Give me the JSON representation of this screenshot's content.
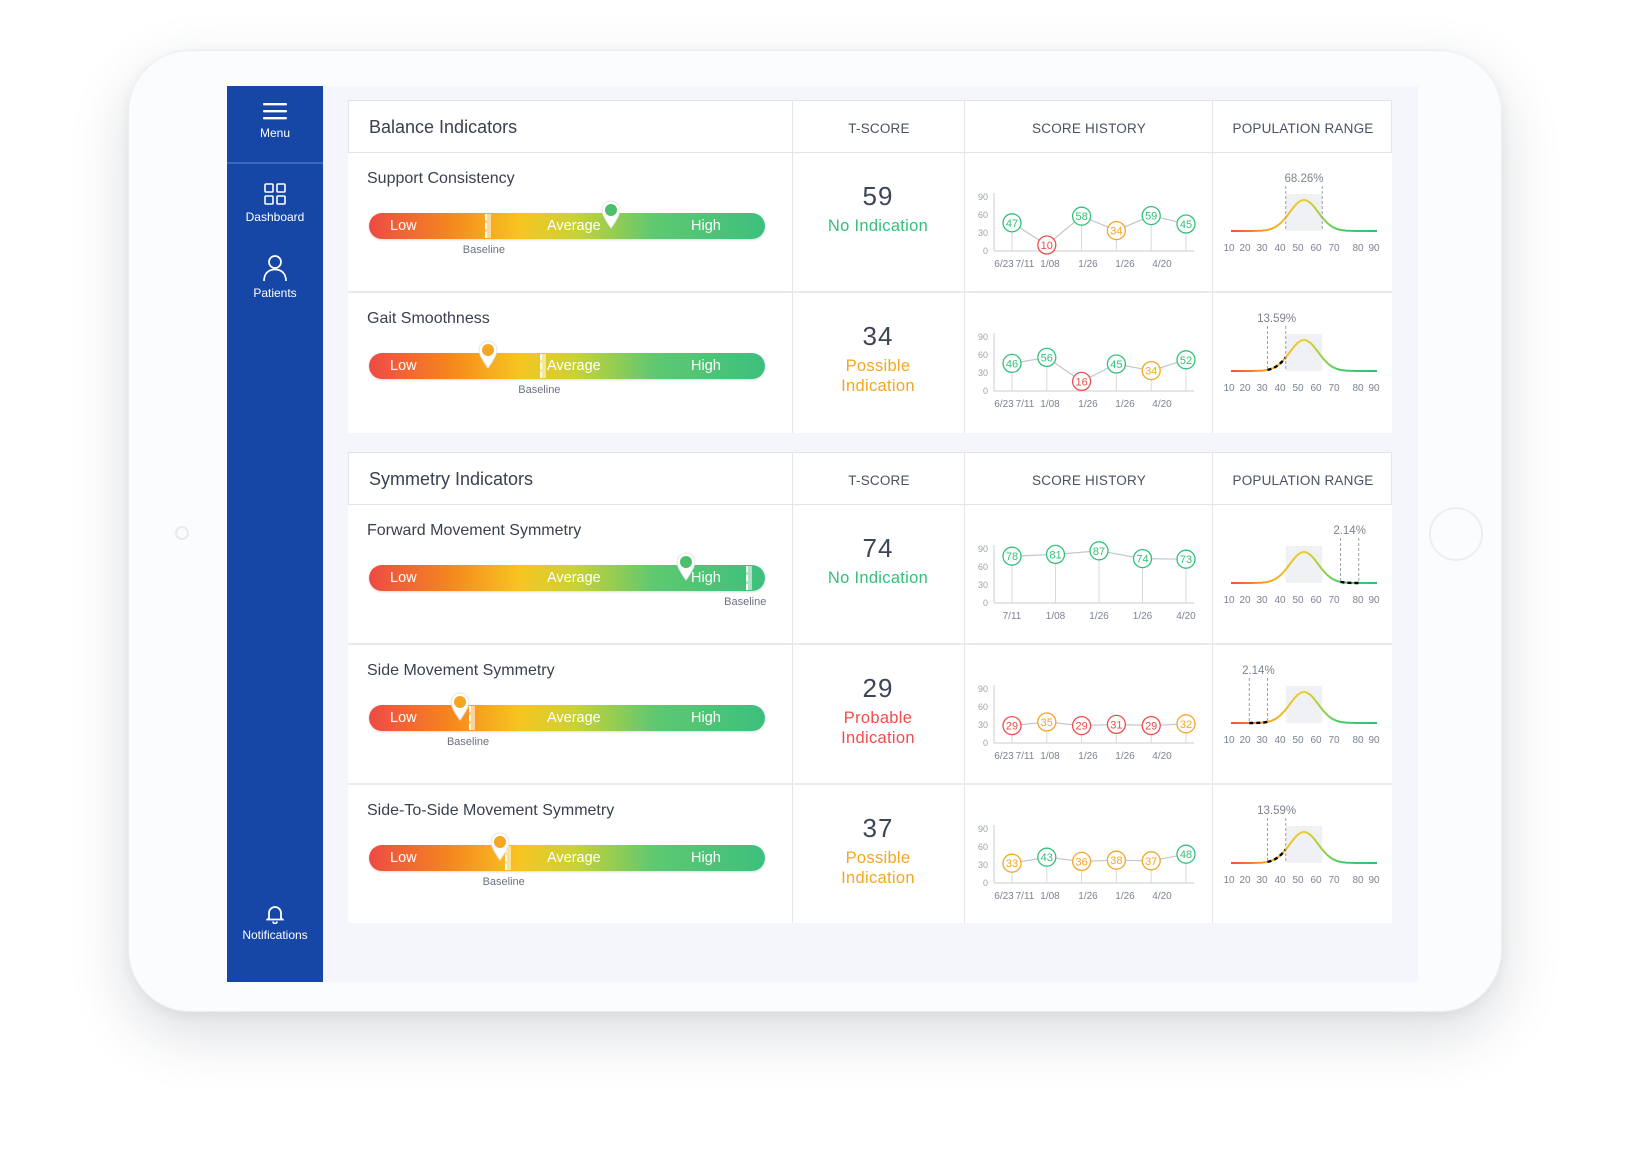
{
  "sidebar": {
    "menu_label": "Menu",
    "items": [
      {
        "label": "Dashboard",
        "icon": "dashboard-icon"
      },
      {
        "label": "Patients",
        "icon": "patients-icon"
      }
    ],
    "notifications_label": "Notifications"
  },
  "columns": {
    "tscore": "T-SCORE",
    "history": "SCORE HISTORY",
    "population": "POPULATION RANGE"
  },
  "bar_labels": {
    "low": "Low",
    "average": "Average",
    "high": "High",
    "baseline": "Baseline"
  },
  "colors": {
    "sidebar": "#1646a6",
    "green": "#34c07a",
    "orange": "#f5a623",
    "red": "#ef4d4d"
  },
  "sections": [
    {
      "title": "Balance Indicators",
      "rows": [
        {
          "name": "Support Consistency",
          "marker": 0.61,
          "baseline": 0.3,
          "marker_color": "#4cbf6a",
          "tscore": "59",
          "status_line1": "No Indication",
          "status_line2": "",
          "status_color": "#34c07a",
          "history_dates": [
            "6/23",
            "7/11",
            "1/08",
            "1/26",
            "1/26",
            "4/20"
          ],
          "history_values": [
            47,
            10,
            58,
            34,
            59,
            45
          ],
          "pop_percent": "68.26%",
          "pop_from": 40,
          "pop_to": 60,
          "pop_style": "band"
        },
        {
          "name": "Gait Smoothness",
          "marker": 0.3,
          "baseline": 0.44,
          "marker_color": "#f5a623",
          "tscore": "34",
          "status_line1": "Possible",
          "status_line2": "Indication",
          "status_color": "#f5a623",
          "history_dates": [
            "6/23",
            "7/11",
            "1/08",
            "1/26",
            "1/26",
            "4/20"
          ],
          "history_values": [
            46,
            56,
            16,
            45,
            34,
            52
          ],
          "pop_percent": "13.59%",
          "pop_from": 30,
          "pop_to": 40,
          "pop_style": "left"
        }
      ]
    },
    {
      "title": "Symmetry Indicators",
      "rows": [
        {
          "name": "Forward Movement Symmetry",
          "marker": 0.8,
          "baseline": 0.96,
          "marker_color": "#4cbf6a",
          "tscore": "74",
          "status_line1": "No Indication",
          "status_line2": "",
          "status_color": "#34c07a",
          "history_dates": [
            "7/11",
            "1/08",
            "1/26",
            "1/26",
            "4/20"
          ],
          "history_values": [
            78,
            81,
            87,
            74,
            73
          ],
          "pop_percent": "2.14%",
          "pop_from": 70,
          "pop_to": 80,
          "pop_style": "right"
        },
        {
          "name": "Side Movement Symmetry",
          "marker": 0.23,
          "baseline": 0.26,
          "marker_color": "#f5a623",
          "tscore": "29",
          "status_line1": "Probable",
          "status_line2": "Indication",
          "status_color": "#ef4d4d",
          "history_dates": [
            "6/23",
            "7/11",
            "1/08",
            "1/26",
            "1/26",
            "4/20"
          ],
          "history_values": [
            29,
            35,
            29,
            31,
            29,
            32
          ],
          "pop_percent": "2.14%",
          "pop_from": 20,
          "pop_to": 30,
          "pop_style": "left"
        },
        {
          "name": "Side-To-Side Movement Symmetry",
          "marker": 0.33,
          "baseline": 0.35,
          "marker_color": "#f5a623",
          "tscore": "37",
          "status_line1": "Possible",
          "status_line2": "Indication",
          "status_color": "#f5a623",
          "history_dates": [
            "6/23",
            "7/11",
            "1/08",
            "1/26",
            "1/26",
            "4/20"
          ],
          "history_values": [
            33,
            43,
            36,
            38,
            37,
            48
          ],
          "pop_percent": "13.59%",
          "pop_from": 30,
          "pop_to": 40,
          "pop_style": "left"
        }
      ]
    }
  ],
  "history_axis": [
    "0",
    "30",
    "60",
    "90"
  ],
  "pop_axis": [
    "10",
    "20",
    "30",
    "40",
    "50",
    "60",
    "70",
    "80",
    "90"
  ]
}
